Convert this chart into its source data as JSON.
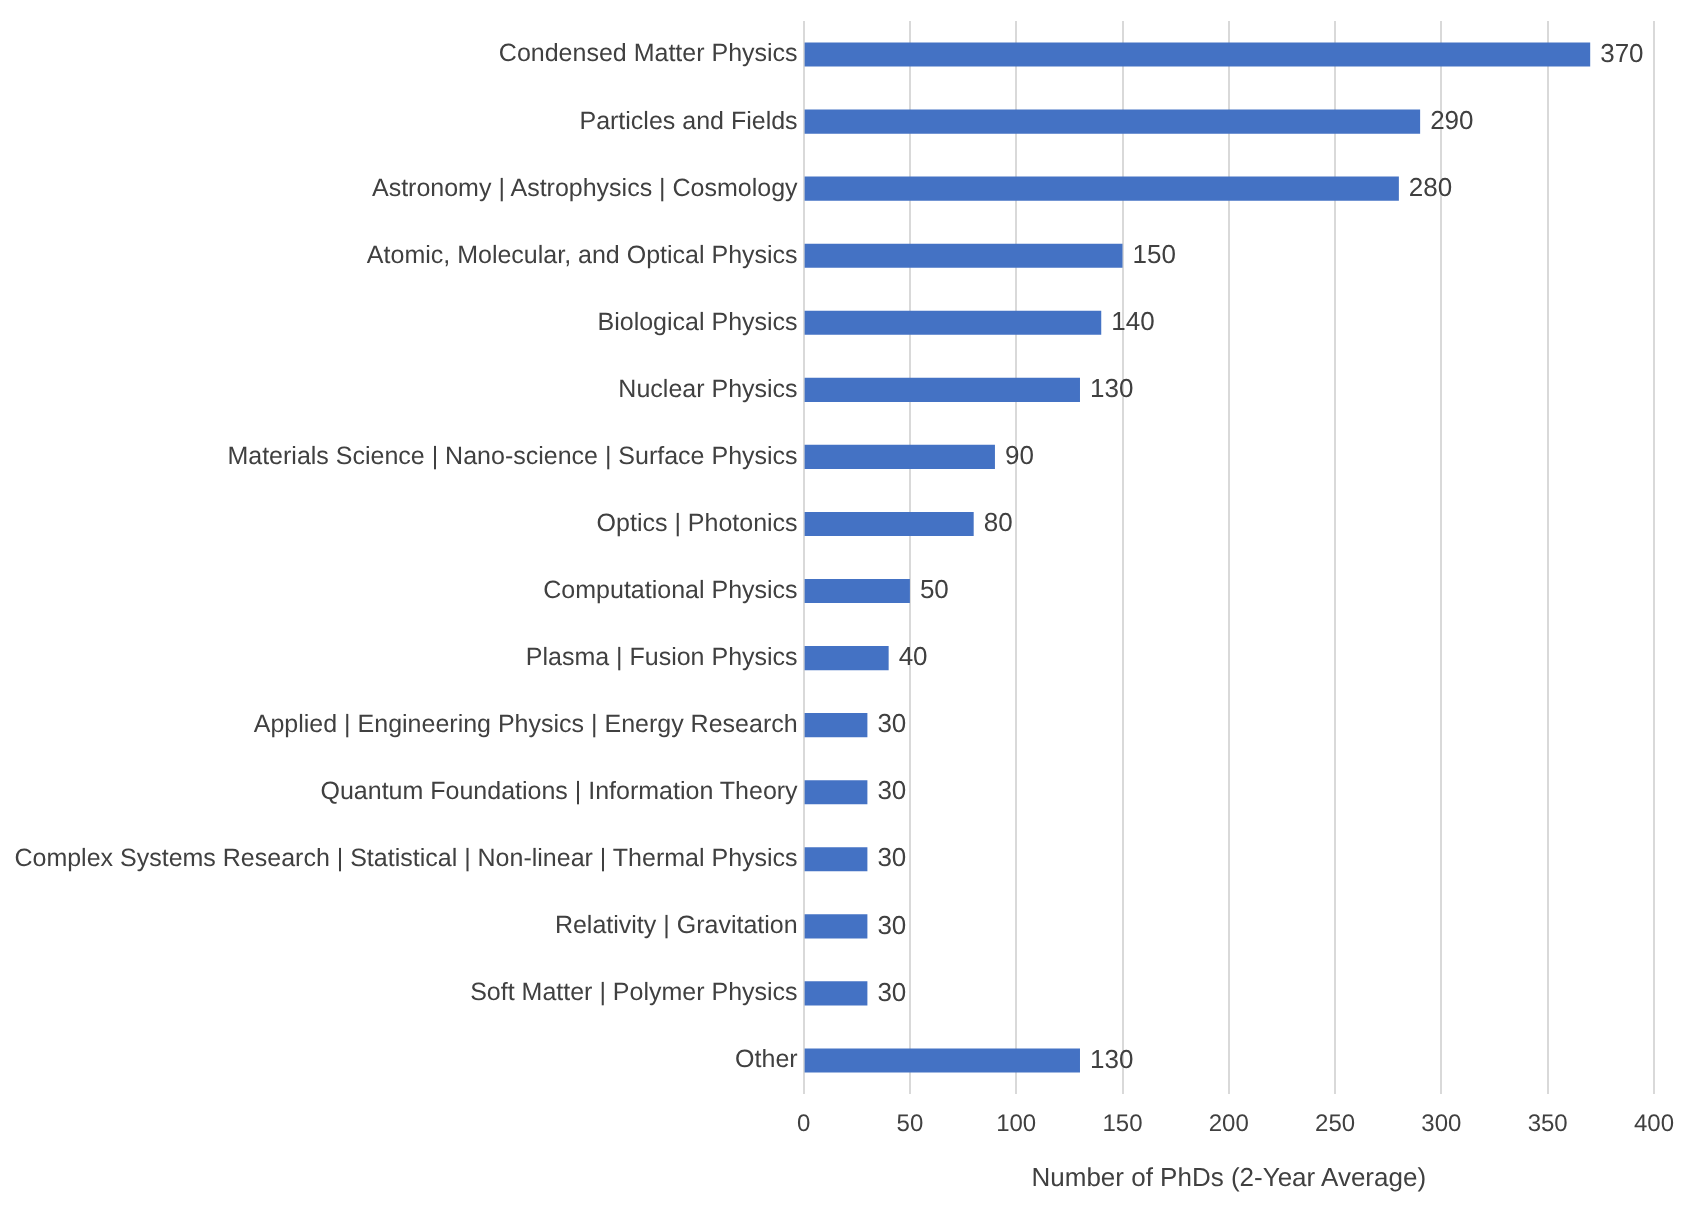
{
  "chart_data": {
    "type": "bar",
    "orientation": "horizontal",
    "xlabel": "Number of PhDs (2-Year Average)",
    "categories": [
      "Condensed Matter Physics",
      "Particles and Fields",
      "Astronomy | Astrophysics | Cosmology",
      "Atomic, Molecular, and Optical Physics",
      "Biological Physics",
      "Nuclear Physics",
      "Materials Science | Nano-science | Surface Physics",
      "Optics | Photonics",
      "Computational Physics",
      "Plasma | Fusion Physics",
      "Applied | Engineering Physics | Energy Research",
      "Quantum Foundations | Information Theory",
      "Complex Systems Research | Statistical | Non-linear | Thermal Physics",
      "Relativity | Gravitation",
      "Soft Matter | Polymer Physics",
      "Other"
    ],
    "values": [
      370,
      290,
      280,
      150,
      140,
      130,
      90,
      80,
      50,
      40,
      30,
      30,
      30,
      30,
      30,
      130
    ],
    "color": "#4472c4",
    "xlim": [
      0,
      400
    ],
    "xticks": [
      0,
      50,
      100,
      150,
      200,
      250,
      300,
      350,
      400
    ],
    "grid": "x",
    "data_labels": true,
    "legend": false
  }
}
